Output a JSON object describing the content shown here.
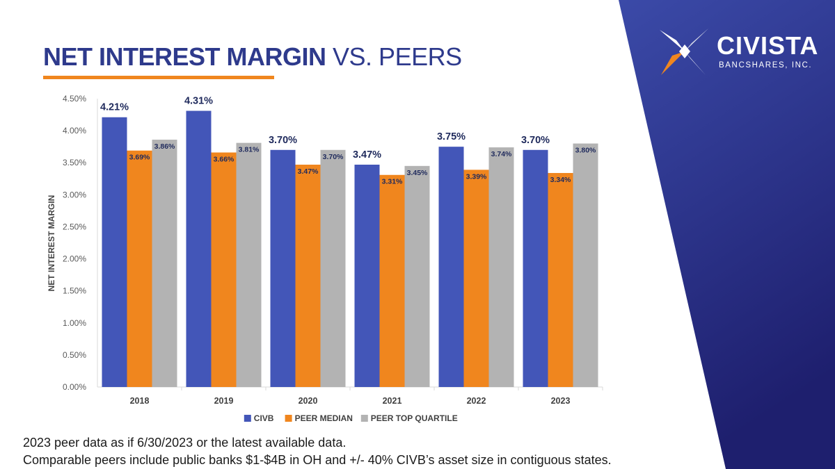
{
  "slide": {
    "title_bold": "NET INTEREST MARGIN",
    "title_light": "VS. PEERS",
    "colors": {
      "title": "#2e3a8c",
      "accent": "#f0861e",
      "panel_top": "#3b4aa8",
      "panel_bottom": "#1e1f6e"
    }
  },
  "logo": {
    "wordmark": "CIVISTA",
    "subtitle": "BANCSHARES, INC."
  },
  "chart_data": {
    "type": "bar",
    "title": "",
    "xlabel": "",
    "ylabel": "NET INTEREST MARGIN",
    "categories": [
      "2018",
      "2019",
      "2020",
      "2021",
      "2022",
      "2023"
    ],
    "ylim": [
      0,
      4.5
    ],
    "yticks": [
      0,
      0.5,
      1.0,
      1.5,
      2.0,
      2.5,
      3.0,
      3.5,
      4.0,
      4.5
    ],
    "ytick_labels": [
      "0.00%",
      "0.50%",
      "1.00%",
      "1.50%",
      "2.00%",
      "2.50%",
      "3.00%",
      "3.50%",
      "4.00%",
      "4.50%"
    ],
    "grid": false,
    "legend_position": "bottom",
    "series": [
      {
        "name": "CIVB",
        "color": "#4356b8",
        "values": [
          4.21,
          4.31,
          3.7,
          3.47,
          3.75,
          3.7
        ],
        "labels": [
          "4.21%",
          "4.31%",
          "3.70%",
          "3.47%",
          "3.75%",
          "3.70%"
        ]
      },
      {
        "name": "PEER MEDIAN",
        "color": "#f0861e",
        "values": [
          3.69,
          3.66,
          3.47,
          3.31,
          3.39,
          3.34
        ],
        "labels": [
          "3.69%",
          "3.66%",
          "3.47%",
          "3.31%",
          "3.39%",
          "3.34%"
        ]
      },
      {
        "name": "PEER TOP QUARTILE",
        "color": "#b3b3b3",
        "values": [
          3.86,
          3.81,
          3.7,
          3.45,
          3.74,
          3.8
        ],
        "labels": [
          "3.86%",
          "3.81%",
          "3.70%",
          "3.45%",
          "3.74%",
          "3.80%"
        ]
      }
    ]
  },
  "footnotes": [
    "2023 peer data as if 6/30/2023 or the latest available data.",
    "Comparable peers include public banks $1-$4B in OH and +/- 40% CIVB’s asset size in contiguous states."
  ]
}
